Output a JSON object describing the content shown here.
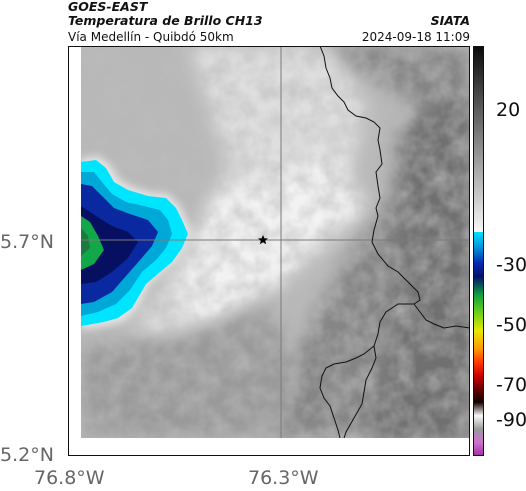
{
  "header": {
    "satellite": "GOES-EAST",
    "product": "Temperatura de Brillo CH13",
    "agency": "SIATA",
    "region": "Vía Medellín - Quibdó 50km",
    "datetime": "2024-09-18 11:09"
  },
  "axes": {
    "lat_ticks": [
      "5.7°N",
      "5.2°N"
    ],
    "lon_ticks": [
      "76.8°W",
      "76.3°W"
    ]
  },
  "colorbar": {
    "tick_labels": [
      "20",
      "-30",
      "-50",
      "-70",
      "-90"
    ]
  },
  "map": {
    "marker": "star-marker",
    "has_crosshair": true,
    "has_borders": true
  },
  "colors": {
    "cold_cyan": "#00e5ff",
    "cold_blue": "#0a28a0",
    "cold_navy": "#071060",
    "cold_green": "#10a848",
    "warm_gray": "#7d7d7d",
    "cloud_white": "#f0f0f0"
  }
}
